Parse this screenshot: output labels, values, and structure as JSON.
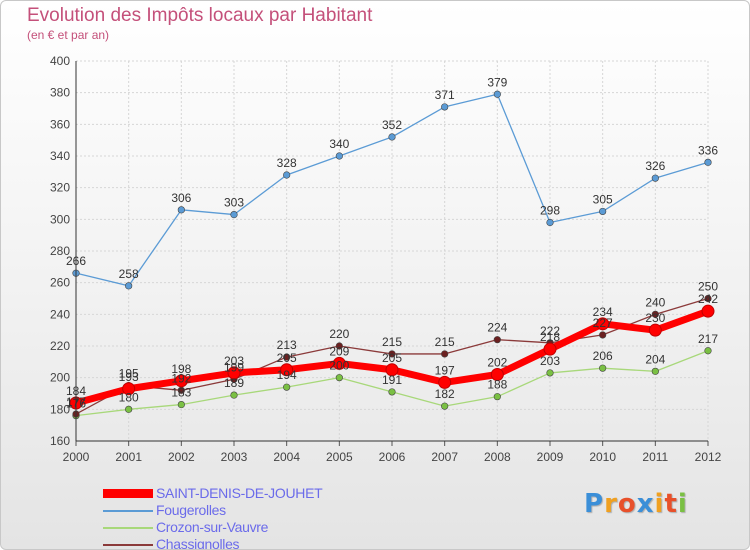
{
  "header": {
    "title": "Evolution des Impôts locaux par Habitant",
    "subtitle": "(en € et par an)"
  },
  "logo": {
    "letters": [
      "P",
      "r",
      "o",
      "x",
      "i",
      "t",
      "i"
    ],
    "colors": [
      "#3b8fd8",
      "#f0a020",
      "#e8502a",
      "#3b8fd8",
      "#f0a020",
      "#e8502a",
      "#7ac043"
    ]
  },
  "chart_data": {
    "type": "line",
    "x": [
      "2000",
      "2001",
      "2002",
      "2003",
      "2004",
      "2005",
      "2006",
      "2007",
      "2008",
      "2009",
      "2010",
      "2011",
      "2012"
    ],
    "ylim": [
      160,
      400
    ],
    "yticks": [
      160,
      180,
      200,
      220,
      240,
      260,
      280,
      300,
      320,
      340,
      360,
      380,
      400
    ],
    "grid": true,
    "series": [
      {
        "name": "Fougerolles",
        "color": "#5b9bd5",
        "marker": "#5b9bd5",
        "values": [
          266,
          258,
          306,
          303,
          328,
          340,
          352,
          371,
          379,
          298,
          305,
          326,
          336
        ],
        "labels": [
          "266",
          "258",
          "306",
          "303",
          "328",
          "340",
          "352",
          "371",
          "379",
          "298",
          "305",
          "326",
          "336"
        ]
      },
      {
        "name": "Crozon-sur-Vauvre",
        "color": "#a8d87a",
        "marker": "#7ac043",
        "values": [
          176,
          180,
          183,
          189,
          194,
          200,
          191,
          182,
          188,
          203,
          206,
          204,
          217
        ],
        "labels": [
          "176",
          "180",
          "183",
          "189",
          "194",
          "200",
          "191",
          "182",
          "188",
          "203",
          "206",
          "204",
          "217"
        ]
      },
      {
        "name": "Chassignolles",
        "color": "#8b3a3a",
        "marker": "#6b2020",
        "values": [
          177,
          195,
          192,
          199,
          213,
          220,
          215,
          215,
          224,
          222,
          227,
          240,
          250
        ],
        "labels": [
          "177",
          "195",
          "192",
          "199",
          "213",
          "220",
          "215",
          "215",
          "224",
          "222",
          "227",
          "240",
          "250"
        ]
      },
      {
        "name": "SAINT-DENIS-DE-JOUHET",
        "color": "#ff0000",
        "marker": "#ff0000",
        "values": [
          184,
          193,
          198,
          203,
          205,
          209,
          205,
          197,
          202,
          218,
          234,
          230,
          242
        ],
        "labels": [
          "184",
          "193",
          "198",
          "203",
          "205",
          "209",
          "205",
          "197",
          "202",
          "218",
          "234",
          "230",
          "242"
        ]
      }
    ],
    "legend_order": [
      "SAINT-DENIS-DE-JOUHET",
      "Fougerolles",
      "Crozon-sur-Vauvre",
      "Chassignolles"
    ],
    "legend_position": "bottom-left"
  }
}
